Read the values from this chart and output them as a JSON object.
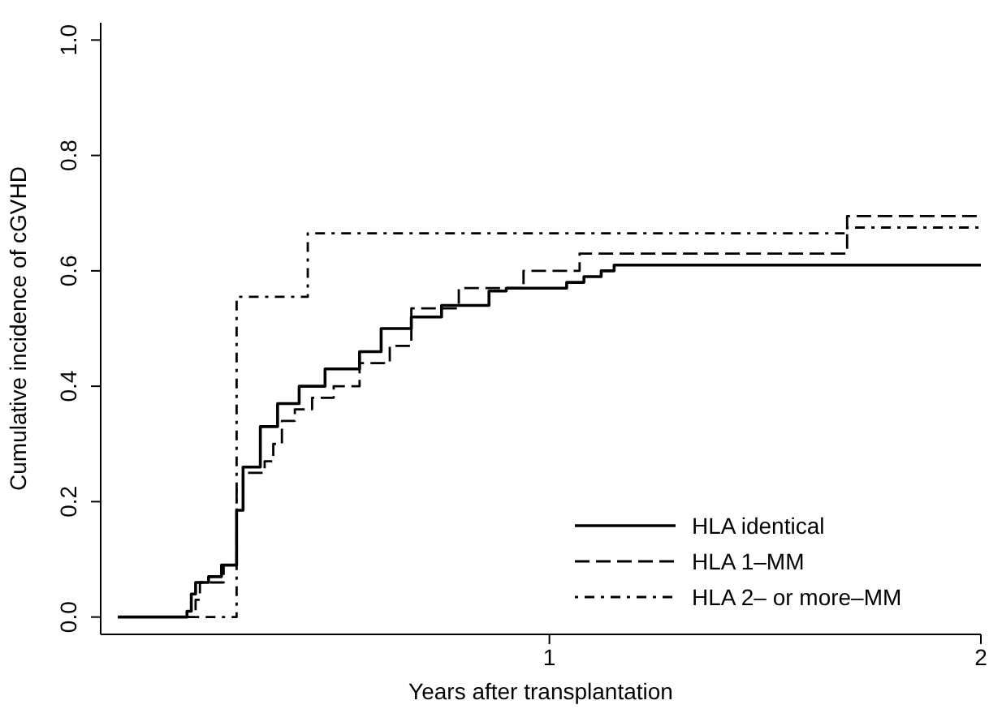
{
  "chart_data": {
    "type": "step",
    "xlabel": "Years after transplantation",
    "ylabel": "Cumulative incidence of cGVHD",
    "xlim": [
      -0.04,
      2
    ],
    "ylim": [
      -0.03,
      1.03
    ],
    "xticks": [
      1,
      2
    ],
    "yticks": [
      {
        "value": 0,
        "label": "0.0"
      },
      {
        "value": 0.2,
        "label": "0.2"
      },
      {
        "value": 0.4,
        "label": "0.4"
      },
      {
        "value": 0.6,
        "label": "0.6"
      },
      {
        "value": 0.8,
        "label": "0.8"
      },
      {
        "value": 1,
        "label": "1.0"
      }
    ],
    "legend": "bottom right",
    "grid": false,
    "series": [
      {
        "name": "HLA identical",
        "color": "#000000",
        "line_style": "solid",
        "x": [
          0,
          0.16,
          0.17,
          0.18,
          0.21,
          0.24,
          0.27,
          0.275,
          0.29,
          0.33,
          0.37,
          0.42,
          0.48,
          0.56,
          0.61,
          0.68,
          0.75,
          0.86,
          0.9,
          1.04,
          1.08,
          1.12,
          1.15,
          2.0
        ],
        "values": [
          0,
          0.01,
          0.04,
          0.06,
          0.07,
          0.09,
          0.09,
          0.185,
          0.26,
          0.33,
          0.37,
          0.4,
          0.43,
          0.46,
          0.5,
          0.52,
          0.54,
          0.565,
          0.57,
          0.58,
          0.59,
          0.6,
          0.61,
          0.61
        ]
      },
      {
        "name": "HLA 1–MM",
        "color": "#000000",
        "line_style": "dashed",
        "x": [
          0,
          0.18,
          0.19,
          0.245,
          0.275,
          0.29,
          0.34,
          0.36,
          0.38,
          0.41,
          0.45,
          0.5,
          0.56,
          0.63,
          0.68,
          0.79,
          0.94,
          1.07,
          1.69,
          2.0
        ],
        "values": [
          0,
          0.03,
          0.06,
          0.09,
          0.22,
          0.25,
          0.27,
          0.3,
          0.34,
          0.36,
          0.38,
          0.4,
          0.44,
          0.47,
          0.535,
          0.57,
          0.6,
          0.63,
          0.695,
          0.695
        ]
      },
      {
        "name": "HLA 2– or more–MM",
        "color": "#000000",
        "line_style": "dashdot",
        "x": [
          0,
          0.275,
          0.44,
          1.69,
          2.0
        ],
        "values": [
          0,
          0.555,
          0.665,
          0.675,
          0.675
        ]
      }
    ]
  }
}
